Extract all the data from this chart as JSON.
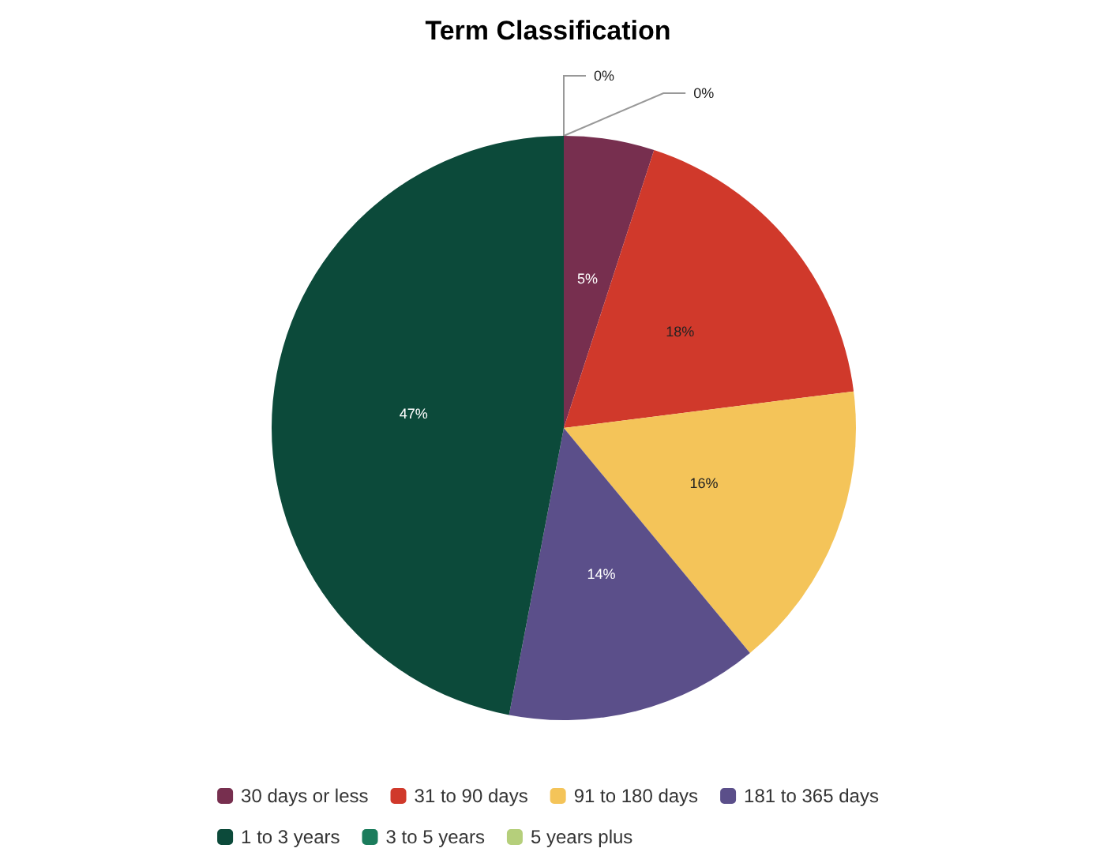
{
  "chart_data": {
    "type": "pie",
    "title": "Term Classification",
    "categories": [
      "30 days or less",
      "31 to 90 days",
      "91 to 180 days",
      "181 to 365 days",
      "1 to 3 years",
      "3 to 5 years",
      "5 years plus"
    ],
    "values": [
      5,
      18,
      16,
      14,
      47,
      0,
      0
    ],
    "value_labels": [
      "5%",
      "18%",
      "16%",
      "14%",
      "47%",
      "0%",
      "0%"
    ],
    "colors": [
      "#772f4f",
      "#d0392b",
      "#f4c459",
      "#5b4f8a",
      "#0c4a3a",
      "#1b7c5c",
      "#b5cf7b"
    ],
    "legend": "bottom"
  }
}
